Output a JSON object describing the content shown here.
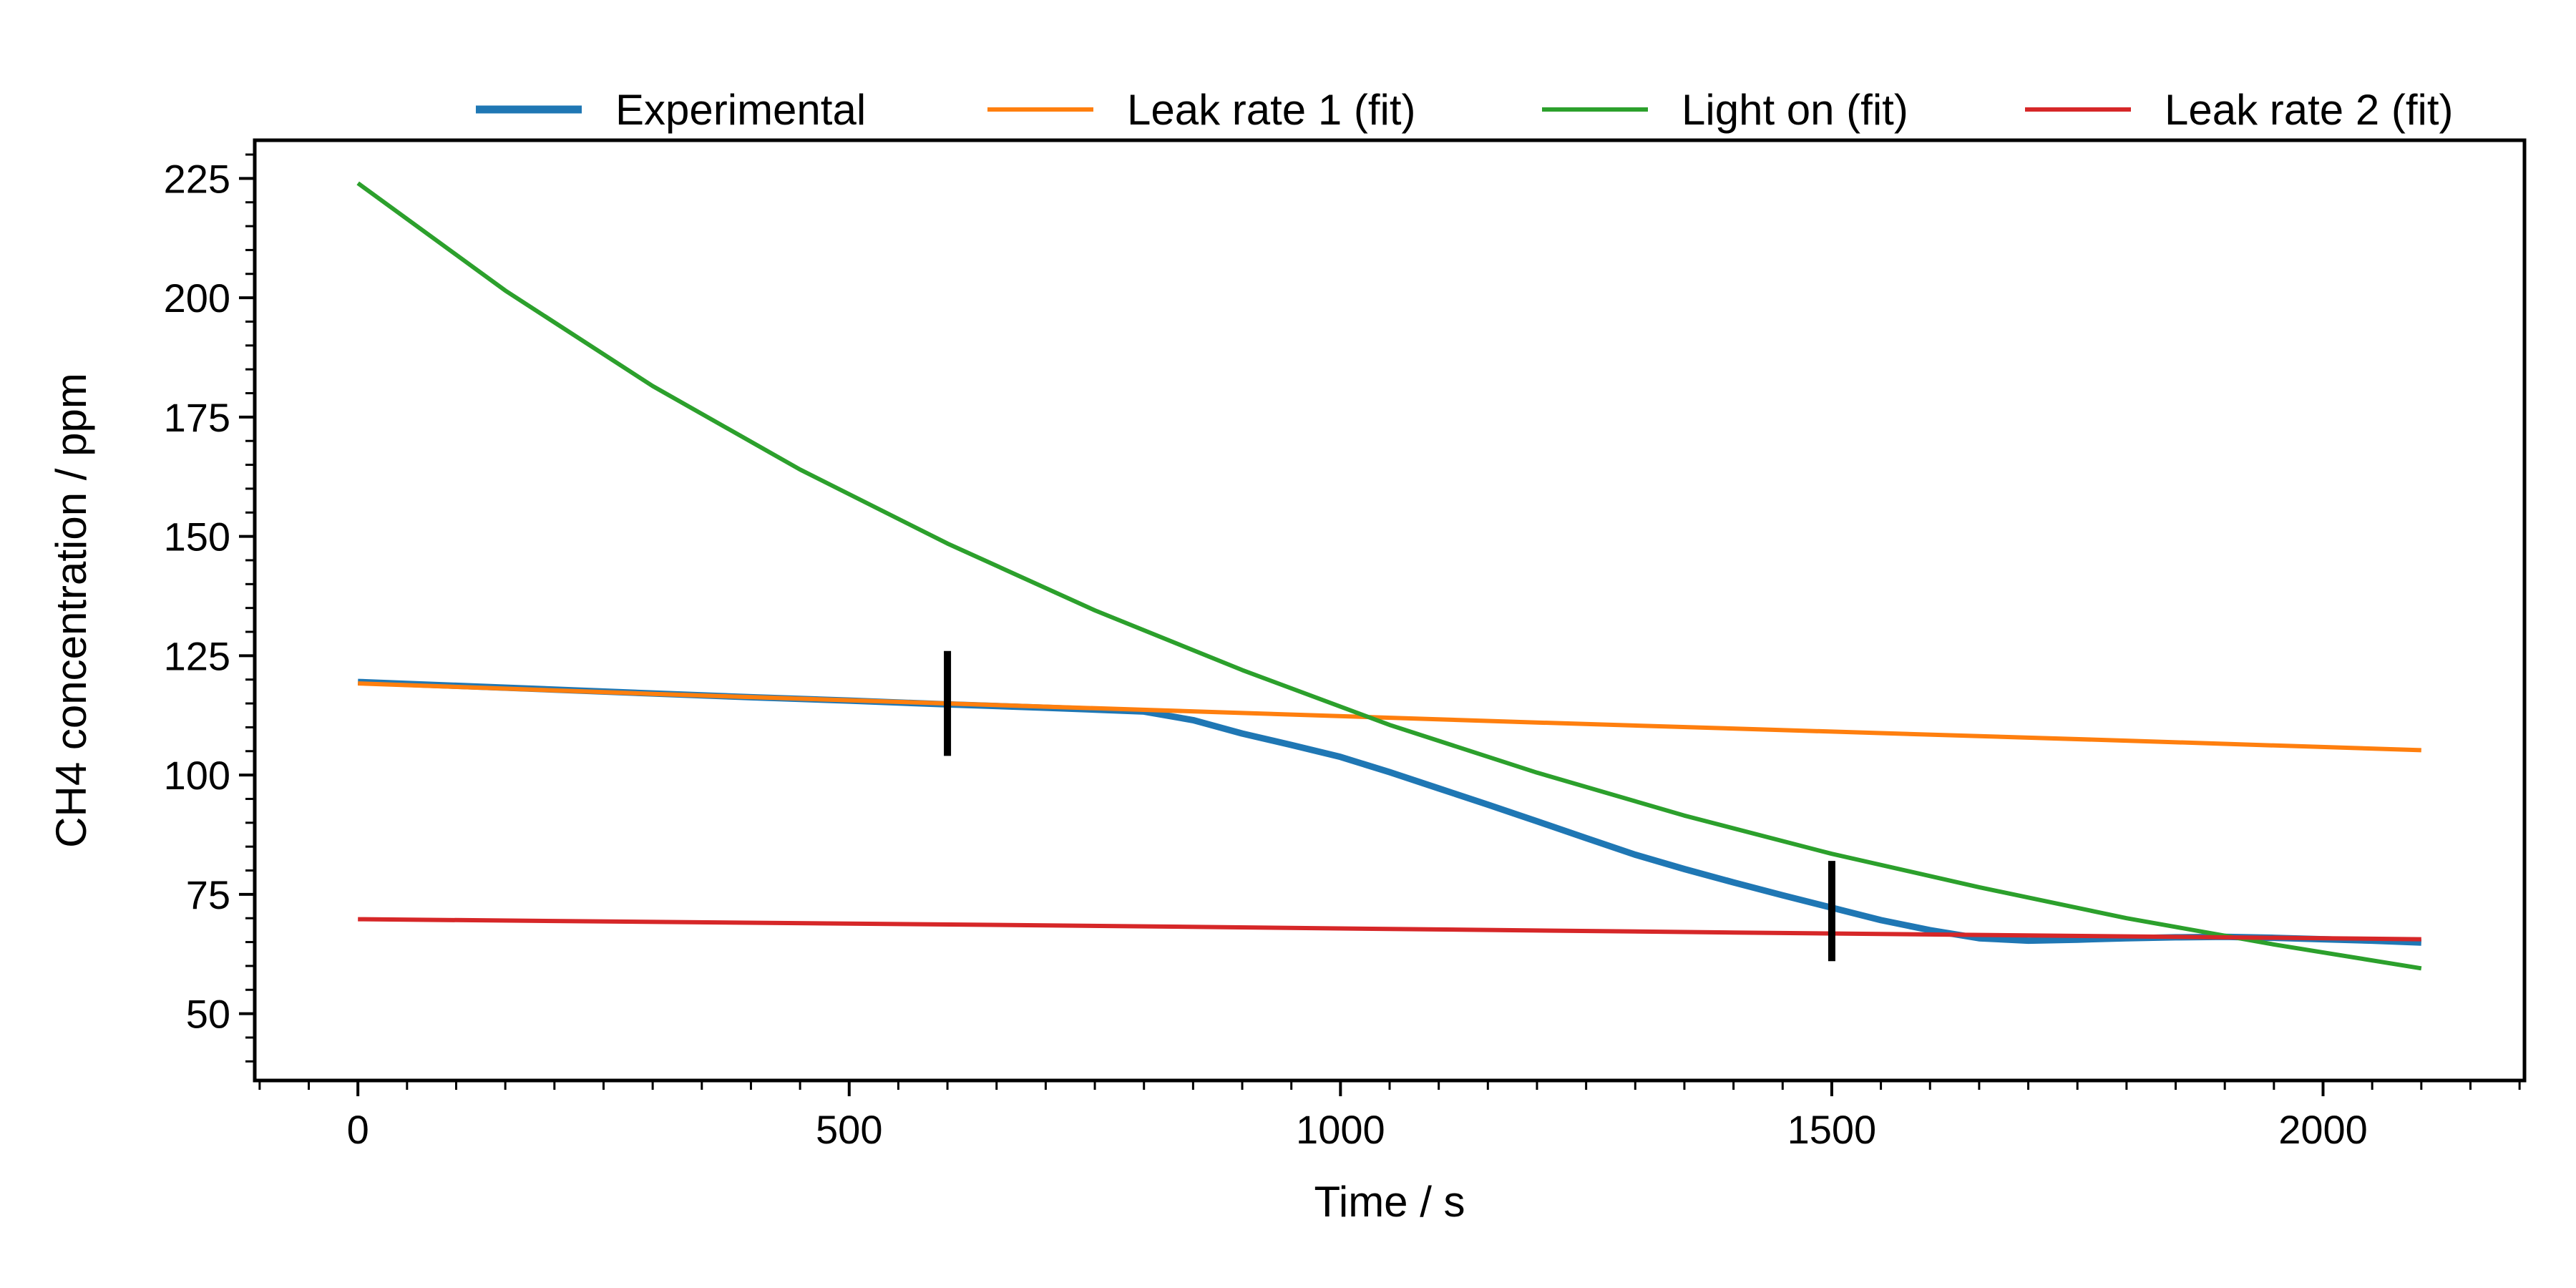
{
  "chart_data": {
    "type": "line",
    "title": "",
    "xlabel": "Time / s",
    "ylabel": "CH4 concentration / ppm",
    "xlim": [
      -105,
      2205
    ],
    "ylim": [
      36,
      233
    ],
    "x_ticks": [
      0,
      500,
      1000,
      1500,
      2000
    ],
    "y_ticks": [
      50,
      75,
      100,
      125,
      150,
      175,
      200,
      225
    ],
    "grid": false,
    "legend_position": "top",
    "series": [
      {
        "name": "Experimental",
        "color": "#1f77b4",
        "x": [
          0,
          100,
          200,
          300,
          400,
          500,
          600,
          700,
          800,
          850,
          900,
          950,
          1000,
          1050,
          1100,
          1150,
          1200,
          1250,
          1300,
          1350,
          1400,
          1450,
          1500,
          1550,
          1600,
          1650,
          1700,
          1750,
          1800,
          1850,
          1900,
          1950,
          2000,
          2050,
          2100
        ],
        "y": [
          119.5,
          118.7,
          117.9,
          117.1,
          116.3,
          115.6,
          114.8,
          114.1,
          113.3,
          111.5,
          108.7,
          106.3,
          103.8,
          100.6,
          97.2,
          93.8,
          90.3,
          86.8,
          83.3,
          80.3,
          77.5,
          74.8,
          72.2,
          69.6,
          67.5,
          65.8,
          65.3,
          65.5,
          65.8,
          66.0,
          66.1,
          65.9,
          65.6,
          65.3,
          64.9
        ]
      },
      {
        "name": "Leak rate 1 (fit)",
        "color": "#ff7f0e",
        "x": [
          0,
          300,
          600,
          900,
          1200,
          1500,
          1800,
          2100
        ],
        "y": [
          119.2,
          117.0,
          115.0,
          113.0,
          111.0,
          109.1,
          107.2,
          105.2
        ]
      },
      {
        "name": "Light on (fit)",
        "color": "#2ca02c",
        "x": [
          0,
          150,
          300,
          450,
          600,
          750,
          900,
          1050,
          1200,
          1350,
          1500,
          1650,
          1800,
          1950,
          2100
        ],
        "y": [
          224,
          201.5,
          181.5,
          164,
          148.5,
          134.5,
          122,
          110.5,
          100.5,
          91.5,
          83.5,
          76.5,
          70,
          64.5,
          59.5
        ]
      },
      {
        "name": "Leak rate 2 (fit)",
        "color": "#d62728",
        "x": [
          0,
          700,
          1400,
          2100
        ],
        "y": [
          69.8,
          68.5,
          67.0,
          65.6
        ]
      }
    ],
    "markers": [
      {
        "x": 600,
        "y_low": 104,
        "y_high": 126
      },
      {
        "x": 1500,
        "y_low": 61,
        "y_high": 82
      }
    ]
  }
}
